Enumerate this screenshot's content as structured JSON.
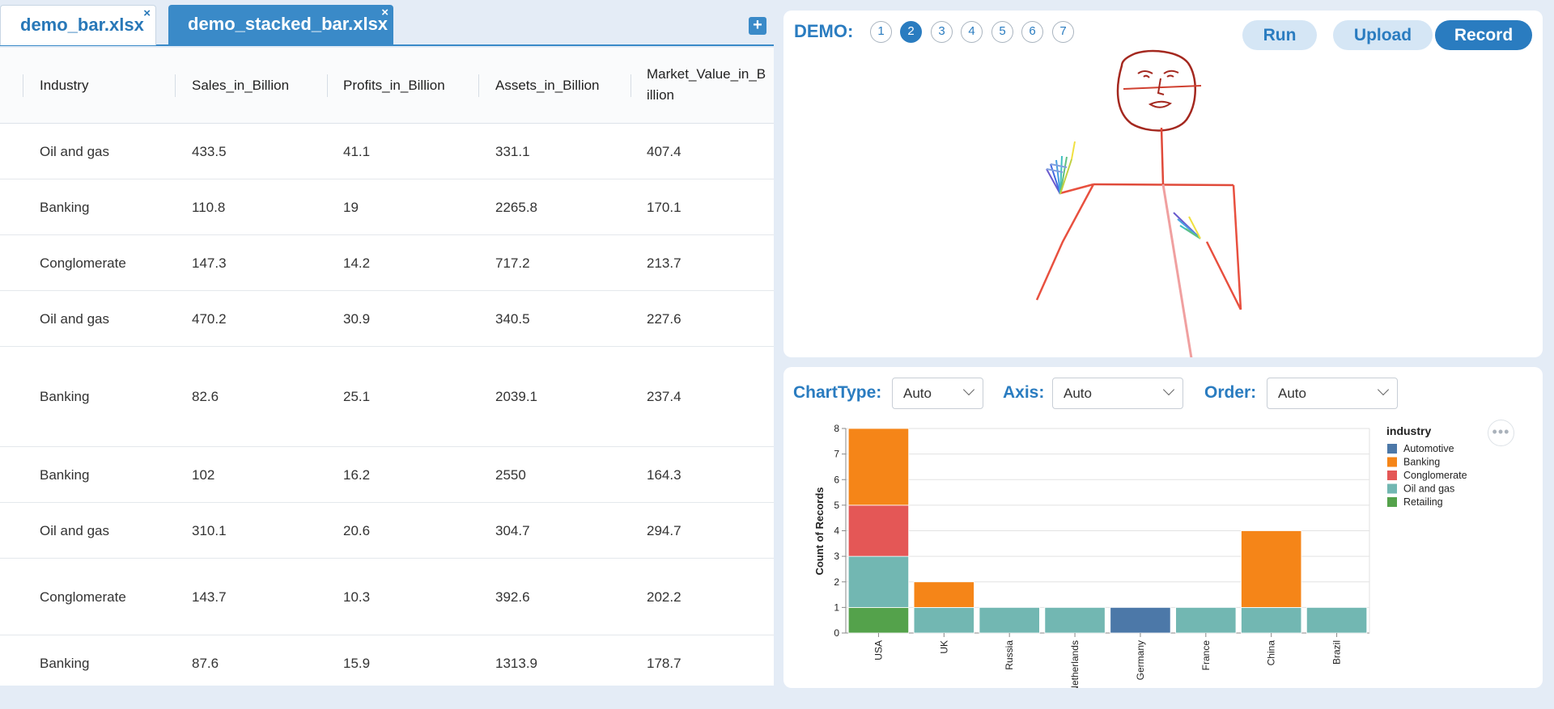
{
  "tabs": [
    {
      "label": "demo_bar.xlsx",
      "close": "×"
    },
    {
      "label": "demo_stacked_bar.xlsx",
      "close": "×"
    }
  ],
  "add_tab_label": "+",
  "table": {
    "columns": [
      "Industry",
      "Sales_in_Billion",
      "Profits_in_Billion",
      "Assets_in_Billion",
      "Market_Value_in_B",
      "illion"
    ],
    "rows": [
      [
        "Oil and gas",
        "433.5",
        "41.1",
        "331.1",
        "407.4"
      ],
      [
        "Banking",
        "110.8",
        "19",
        "2265.8",
        "170.1"
      ],
      [
        "Conglomerate",
        "147.3",
        "14.2",
        "717.2",
        "213.7"
      ],
      [
        "Oil and gas",
        "470.2",
        "30.9",
        "340.5",
        "227.6"
      ],
      [
        "Banking",
        "82.6",
        "25.1",
        "2039.1",
        "237.4"
      ],
      [
        "Banking",
        "102",
        "16.2",
        "2550",
        "164.3"
      ],
      [
        "Oil and gas",
        "310.1",
        "20.6",
        "304.7",
        "294.7"
      ],
      [
        "Conglomerate",
        "143.7",
        "10.3",
        "392.6",
        "202.2"
      ],
      [
        "Banking",
        "87.6",
        "15.9",
        "1313.9",
        "178.7"
      ]
    ]
  },
  "demo": {
    "title": "DEMO:",
    "numbers": [
      "1",
      "2",
      "3",
      "4",
      "5",
      "6",
      "7"
    ],
    "active": "2",
    "buttons": {
      "run": "Run",
      "upload": "Upload",
      "record": "Record"
    }
  },
  "controls": {
    "chart_type_label": "ChartType:",
    "chart_type_value": "Auto",
    "axis_label": "Axis:",
    "axis_value": "Auto",
    "order_label": "Order:",
    "order_value": "Auto"
  },
  "more_label": "•••",
  "chart_data": {
    "type": "bar",
    "stacked": true,
    "categories": [
      "USA",
      "UK",
      "Russia",
      "Netherlands",
      "Germany",
      "France",
      "China",
      "Brazil"
    ],
    "ylabel": "Count of Records",
    "ylim": [
      0,
      8
    ],
    "yticks": [
      "0",
      "1",
      "2",
      "3",
      "4",
      "5",
      "6",
      "7",
      "8"
    ],
    "legend_title": "industry",
    "legend_position": "right",
    "series": [
      {
        "name": "Retailing",
        "color": "#54a24b",
        "values": [
          1,
          0,
          0,
          0,
          0,
          0,
          0,
          0
        ]
      },
      {
        "name": "Oil and gas",
        "color": "#72b7b2",
        "values": [
          2,
          1,
          1,
          1,
          0,
          1,
          1,
          1
        ]
      },
      {
        "name": "Conglomerate",
        "color": "#e45756",
        "values": [
          2,
          0,
          0,
          0,
          0,
          0,
          0,
          0
        ]
      },
      {
        "name": "Banking",
        "color": "#f58518",
        "values": [
          3,
          1,
          0,
          0,
          0,
          0,
          3,
          0
        ]
      },
      {
        "name": "Automotive",
        "color": "#4c78a8",
        "values": [
          0,
          0,
          0,
          0,
          1,
          0,
          0,
          0
        ]
      }
    ],
    "legend_order": [
      "Automotive",
      "Banking",
      "Conglomerate",
      "Oil and gas",
      "Retailing"
    ]
  }
}
